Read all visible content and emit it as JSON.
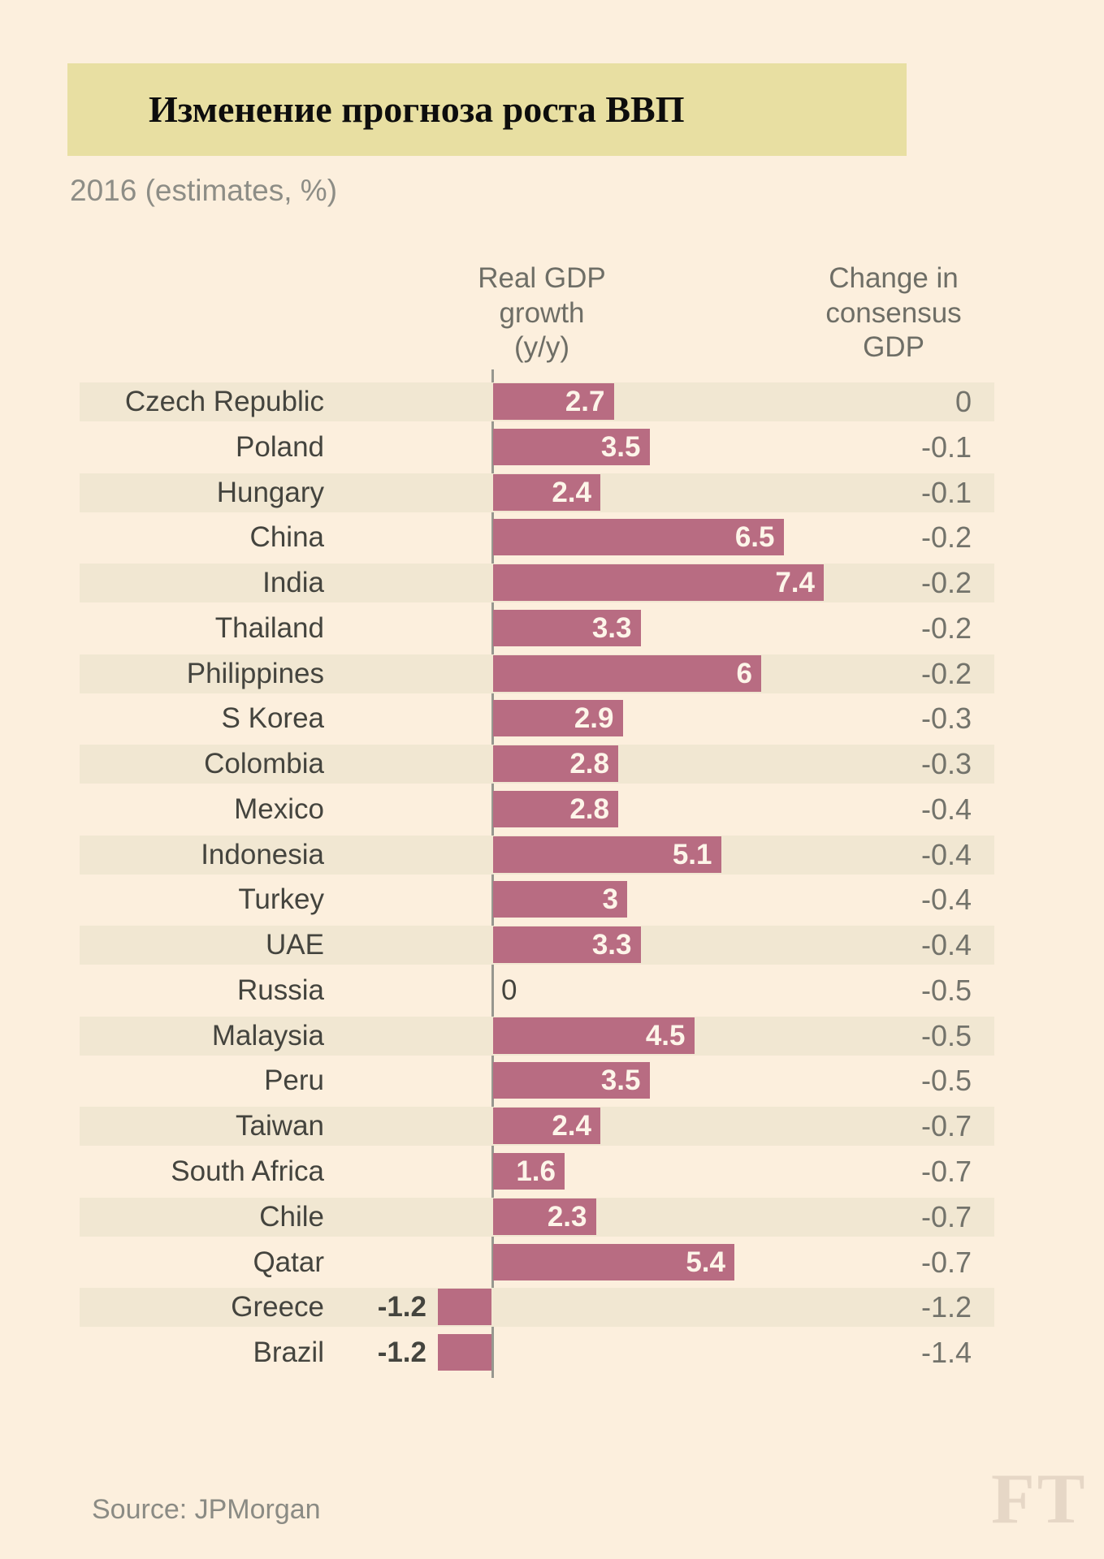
{
  "colors": {
    "bg": "#fcefdd",
    "banner": "#e8dfa2",
    "stripe": "#f1e7d2",
    "bar": "#b86c82",
    "bar-label": "#fdf5e9",
    "text-dark": "#44443e",
    "text-gray": "#6e6e66",
    "value-gray": "#73736b",
    "axis": "#97978f",
    "title": "#0d0d0d",
    "subtitle": "#8d8d86",
    "source": "#8b8b84",
    "ft": "#e6d7c6"
  },
  "header": {
    "title": "Изменение прогноза роста ВВП",
    "subtitle": "2016 (estimates, %)"
  },
  "chart_data": {
    "type": "bar",
    "orientation": "horizontal",
    "title": "Изменение прогноза роста ВВП",
    "subtitle": "2016 (estimates, %)",
    "xlim": [
      -1.5,
      8
    ],
    "grid": false,
    "legend": "none",
    "columns": {
      "growth_header": "Real GDP\ngrowth\n(y/y)",
      "change_header": "Change in\nconsensus\nGDP"
    },
    "rows": [
      {
        "country": "Czech Republic",
        "growth": 2.7,
        "growth_label": "2.7",
        "change": 0,
        "change_label": "0"
      },
      {
        "country": "Poland",
        "growth": 3.5,
        "growth_label": "3.5",
        "change": -0.1,
        "change_label": "-0.1"
      },
      {
        "country": "Hungary",
        "growth": 2.4,
        "growth_label": "2.4",
        "change": -0.1,
        "change_label": "-0.1"
      },
      {
        "country": "China",
        "growth": 6.5,
        "growth_label": "6.5",
        "change": -0.2,
        "change_label": "-0.2"
      },
      {
        "country": "India",
        "growth": 7.4,
        "growth_label": "7.4",
        "change": -0.2,
        "change_label": "-0.2"
      },
      {
        "country": "Thailand",
        "growth": 3.3,
        "growth_label": "3.3",
        "change": -0.2,
        "change_label": "-0.2"
      },
      {
        "country": "Philippines",
        "growth": 6,
        "growth_label": "6",
        "change": -0.2,
        "change_label": "-0.2"
      },
      {
        "country": "S Korea",
        "growth": 2.9,
        "growth_label": "2.9",
        "change": -0.3,
        "change_label": "-0.3"
      },
      {
        "country": "Colombia",
        "growth": 2.8,
        "growth_label": "2.8",
        "change": -0.3,
        "change_label": "-0.3"
      },
      {
        "country": "Mexico",
        "growth": 2.8,
        "growth_label": "2.8",
        "change": -0.4,
        "change_label": "-0.4"
      },
      {
        "country": "Indonesia",
        "growth": 5.1,
        "growth_label": "5.1",
        "change": -0.4,
        "change_label": "-0.4"
      },
      {
        "country": "Turkey",
        "growth": 3,
        "growth_label": "3",
        "change": -0.4,
        "change_label": "-0.4"
      },
      {
        "country": "UAE",
        "growth": 3.3,
        "growth_label": "3.3",
        "change": -0.4,
        "change_label": "-0.4"
      },
      {
        "country": "Russia",
        "growth": 0,
        "growth_label": "0",
        "change": -0.5,
        "change_label": "-0.5"
      },
      {
        "country": "Malaysia",
        "growth": 4.5,
        "growth_label": "4.5",
        "change": -0.5,
        "change_label": "-0.5"
      },
      {
        "country": "Peru",
        "growth": 3.5,
        "growth_label": "3.5",
        "change": -0.5,
        "change_label": "-0.5"
      },
      {
        "country": "Taiwan",
        "growth": 2.4,
        "growth_label": "2.4",
        "change": -0.7,
        "change_label": "-0.7"
      },
      {
        "country": "South Africa",
        "growth": 1.6,
        "growth_label": "1.6",
        "change": -0.7,
        "change_label": "-0.7"
      },
      {
        "country": "Chile",
        "growth": 2.3,
        "growth_label": "2.3",
        "change": -0.7,
        "change_label": "-0.7"
      },
      {
        "country": "Qatar",
        "growth": 5.4,
        "growth_label": "5.4",
        "change": -0.7,
        "change_label": "-0.7"
      },
      {
        "country": "Greece",
        "growth": -1.2,
        "growth_label": "-1.2",
        "change": -1.2,
        "change_label": "-1.2"
      },
      {
        "country": "Brazil",
        "growth": -1.2,
        "growth_label": "-1.2",
        "change": -1.4,
        "change_label": "-1.4"
      }
    ]
  },
  "footer": {
    "source": "Source: JPMorgan",
    "logo": "FT"
  }
}
